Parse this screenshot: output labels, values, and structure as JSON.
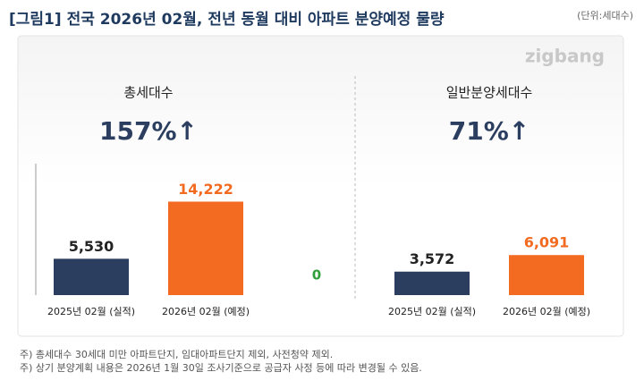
{
  "title": "[그림1] 전국 2026년 02월, 전년 동월 대비 아파트 분양예정 물량",
  "unit": "(단위:세대수)",
  "logo": "zigbang",
  "center_label": "0",
  "chart_data": [
    {
      "type": "bar",
      "title": "총세대수",
      "change": "157%↑",
      "categories": [
        "2025년 02월 (실적)",
        "2026년 02월 (예정)"
      ],
      "values": [
        5530,
        14222
      ],
      "value_labels": [
        "5,530",
        "14,222"
      ],
      "colors": [
        "#2b3e60",
        "#f26b21"
      ],
      "ylim": [
        0,
        20000
      ],
      "y_axis_line": true
    },
    {
      "type": "bar",
      "title": "일반분양세대수",
      "change": "71%↑",
      "categories": [
        "2025년 02월 (실적)",
        "2026년 02월 (예정)"
      ],
      "values": [
        3572,
        6091
      ],
      "value_labels": [
        "3,572",
        "6,091"
      ],
      "colors": [
        "#2b3e60",
        "#f26b21"
      ],
      "ylim": [
        0,
        20000
      ],
      "y_axis_line": false
    }
  ],
  "footnotes": [
    "주) 총세대수 30세대 미만 아파트단지, 임대아파트단지 제외, 사전청약 제외.",
    "주) 상기 분양계획 내용은 2026년 1월 30일 조사기준으로 공급자 사정 등에 따라 변경될 수 있음."
  ]
}
